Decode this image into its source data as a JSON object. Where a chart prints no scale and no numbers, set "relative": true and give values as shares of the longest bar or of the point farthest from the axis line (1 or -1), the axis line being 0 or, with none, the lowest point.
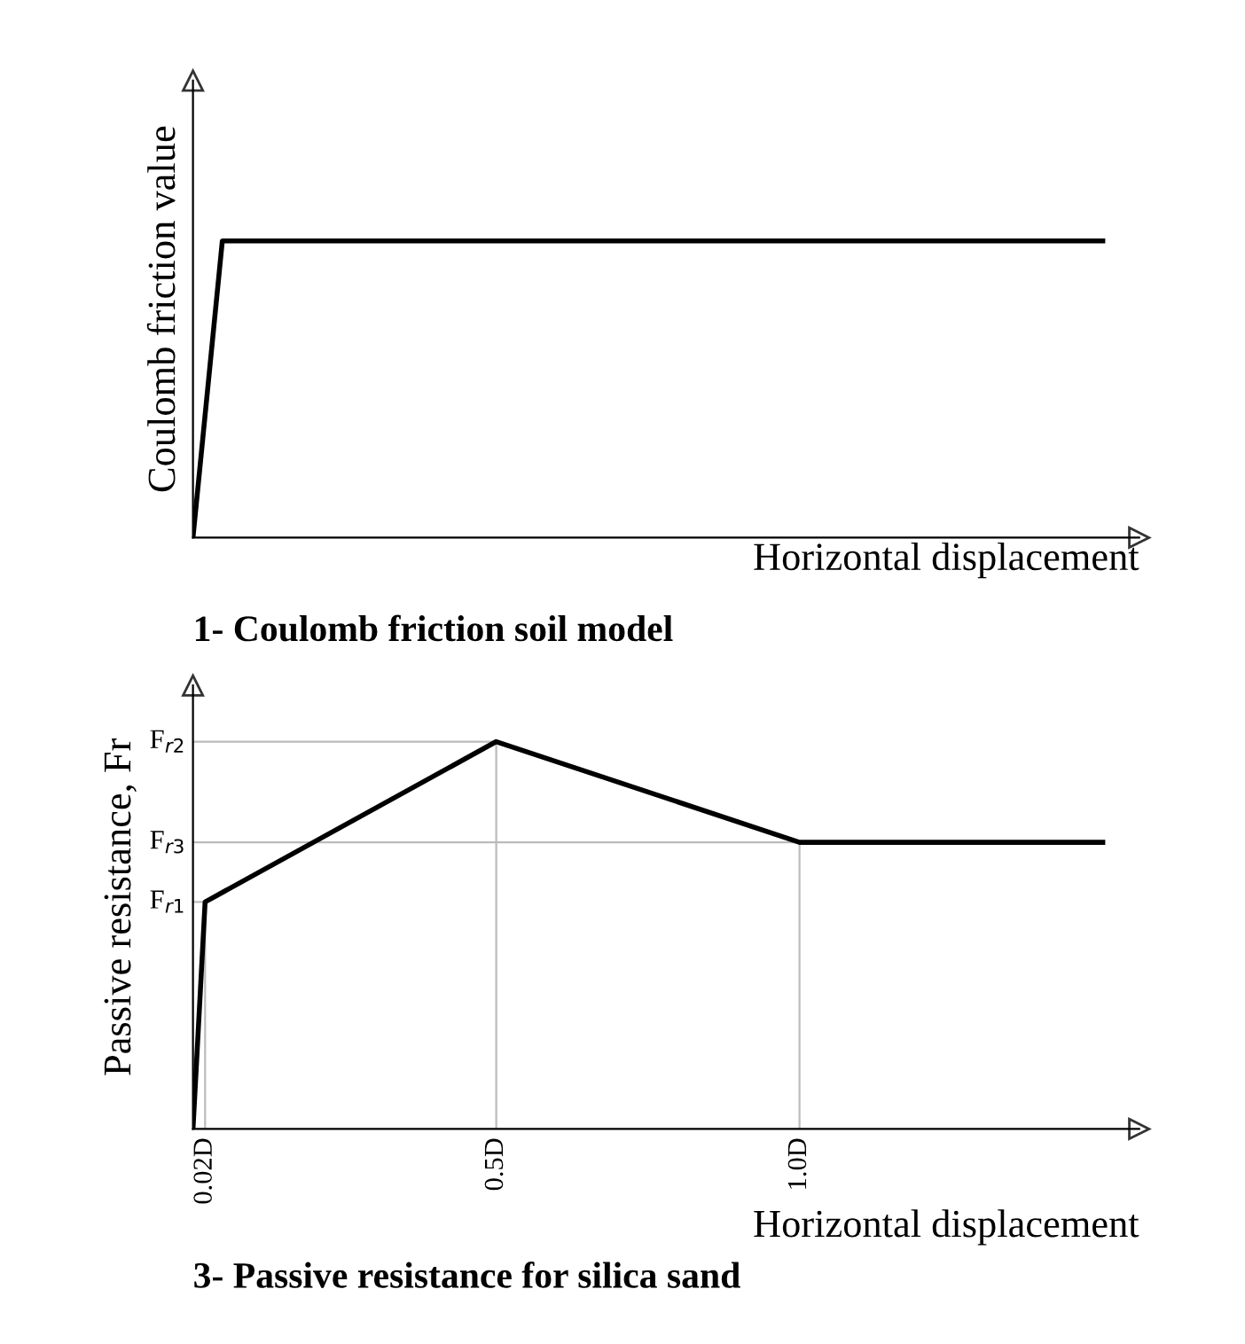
{
  "chart_data": [
    {
      "type": "line",
      "relative": true,
      "xlabel": "Horizontal displacement",
      "ylabel": "Coulomb friction value",
      "title": "1- Coulomb friction soil model",
      "categories": [
        null,
        null,
        null,
        null,
        null,
        null,
        null,
        null,
        null,
        null,
        null,
        null,
        null,
        null,
        null,
        null,
        null,
        null,
        null,
        null,
        null,
        null,
        null,
        null,
        null,
        null,
        null,
        null,
        null,
        null,
        null,
        null
      ],
      "values": [
        0,
        1,
        1,
        1,
        1,
        1,
        1,
        1,
        1,
        1,
        1,
        1,
        1,
        1,
        1,
        1,
        1,
        1,
        1,
        1,
        1,
        1,
        1,
        1,
        1,
        1,
        1,
        1,
        1,
        1,
        1,
        1
      ],
      "color": "#000000",
      "tick_labels": false,
      "marker": "none",
      "line_style": "solid"
    },
    {
      "type": "line",
      "relative": true,
      "xlabel": "Horizontal displacement",
      "ylabel": "Passive resistance, Fr",
      "title": "3- Passive resistance for silica sand",
      "x": [
        0,
        0.02,
        0.5,
        1.0,
        1.5
      ],
      "values": [
        0,
        0.586,
        1,
        0.74,
        0.74
      ],
      "color": "#000000",
      "xlim": [
        0,
        1.56
      ],
      "xticks": [
        {
          "value": 0.02,
          "label": "0.02D"
        },
        {
          "value": 0.5,
          "label": "0.5D"
        },
        {
          "value": 1.0,
          "label": "1.0D"
        }
      ],
      "annotations": [
        {
          "text": "F$_{r2}$",
          "x": 0.5,
          "y": 1
        },
        {
          "text": "F$_{r3}$",
          "x": 1.0,
          "y": 0.74
        },
        {
          "text": "F$_{r1}$",
          "x": 0.02,
          "y": 0.586
        }
      ],
      "grid": "x",
      "marker": "none",
      "line_style": "solid"
    }
  ]
}
